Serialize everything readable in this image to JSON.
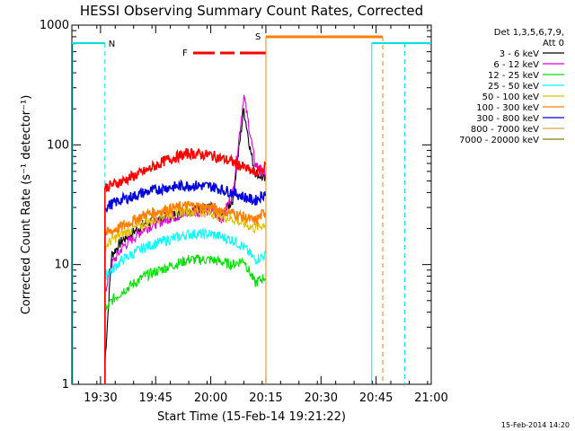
{
  "chart_data": {
    "type": "line",
    "title": "HESSI Observing Summary Count Rates, Corrected",
    "xlabel": "Start Time (15-Feb-14 19:21:22)",
    "ylabel": "Corrected Count Rate (s⁻¹ detector⁻¹)",
    "yscale": "log",
    "ylim": [
      1,
      1000
    ],
    "xlim_minutes": [
      19.37,
      21.0
    ],
    "x_tick_labels": [
      "19:30",
      "19:45",
      "20:00",
      "20:15",
      "20:30",
      "20:45",
      "21:00"
    ],
    "x_tick_values": [
      19.5,
      19.75,
      20.0,
      20.25,
      20.5,
      20.75,
      21.0
    ],
    "y_tick_labels": [
      "1",
      "10",
      "100",
      "1000"
    ],
    "y_tick_values": [
      1,
      10,
      100,
      1000
    ],
    "legend_header": [
      "Det 1,3,5,6,7,9,",
      "Att 0"
    ],
    "legend_position": "right",
    "series": [
      {
        "name": "3 - 6 keV",
        "color": "#000000",
        "x": [
          19.52,
          19.55,
          19.6,
          19.7,
          19.8,
          19.9,
          20.0,
          20.05,
          20.1,
          20.15,
          20.18,
          20.2,
          20.25
        ],
        "y": [
          1.5,
          12,
          16,
          22,
          25,
          28,
          30,
          25,
          35,
          200,
          90,
          60,
          50
        ]
      },
      {
        "name": "6 - 12 keV",
        "color": "#e000e0",
        "x": [
          19.52,
          19.55,
          19.6,
          19.7,
          19.8,
          19.9,
          20.0,
          20.05,
          20.1,
          20.15,
          20.18,
          20.2,
          20.25
        ],
        "y": [
          6,
          10,
          14,
          20,
          24,
          27,
          28,
          24,
          40,
          260,
          120,
          70,
          55
        ]
      },
      {
        "name": "12 - 25 keV",
        "color": "#00e000",
        "x": [
          19.52,
          19.55,
          19.6,
          19.7,
          19.8,
          19.9,
          20.0,
          20.1,
          20.15,
          20.2,
          20.25
        ],
        "y": [
          4,
          5,
          6,
          8,
          9.5,
          11,
          11,
          10,
          11,
          7,
          8
        ]
      },
      {
        "name": "25 - 50 keV",
        "color": "#00ffff",
        "x": [
          19.52,
          19.55,
          19.6,
          19.7,
          19.8,
          19.9,
          20.0,
          20.1,
          20.15,
          20.2,
          20.25
        ],
        "y": [
          8,
          9,
          11,
          14,
          16,
          18,
          18,
          16,
          14,
          11,
          12
        ]
      },
      {
        "name": "50 - 100 keV",
        "color": "#e0c000",
        "x": [
          19.52,
          19.55,
          19.6,
          19.7,
          19.8,
          19.9,
          20.0,
          20.1,
          20.2,
          20.25
        ],
        "y": [
          14,
          16,
          18,
          22,
          26,
          28,
          27,
          24,
          20,
          22
        ]
      },
      {
        "name": "100 - 300 keV",
        "color": "#ff8000",
        "x": [
          19.52,
          19.55,
          19.6,
          19.7,
          19.8,
          19.9,
          20.0,
          20.1,
          20.2,
          20.25
        ],
        "y": [
          18,
          19,
          21,
          26,
          29,
          31,
          30,
          27,
          23,
          28
        ]
      },
      {
        "name": "300 - 800 keV",
        "color": "#0000e0",
        "x": [
          19.52,
          19.55,
          19.6,
          19.7,
          19.8,
          19.9,
          20.0,
          20.1,
          20.2,
          20.25
        ],
        "y": [
          30,
          32,
          35,
          40,
          44,
          46,
          45,
          40,
          34,
          40
        ]
      },
      {
        "name": "800 - 7000 keV",
        "color": "#e0a040",
        "x": [],
        "y": []
      },
      {
        "name": "7000 - 20000 keV",
        "color": "#808000",
        "x": [],
        "y": []
      },
      {
        "name": "",
        "color": "#ff0000",
        "x": [
          19.52,
          19.55,
          19.6,
          19.7,
          19.8,
          19.9,
          20.0,
          20.1,
          20.2,
          20.25
        ],
        "y": [
          44,
          46,
          50,
          60,
          75,
          85,
          82,
          72,
          58,
          65
        ]
      }
    ],
    "annotations": [
      {
        "label": "N",
        "color": "#00e0e0"
      },
      {
        "label": "F",
        "color": "#ff0000"
      },
      {
        "label": "S",
        "color": "#ff8000"
      }
    ],
    "footer_stamp": "15-Feb-2014 14:20"
  }
}
